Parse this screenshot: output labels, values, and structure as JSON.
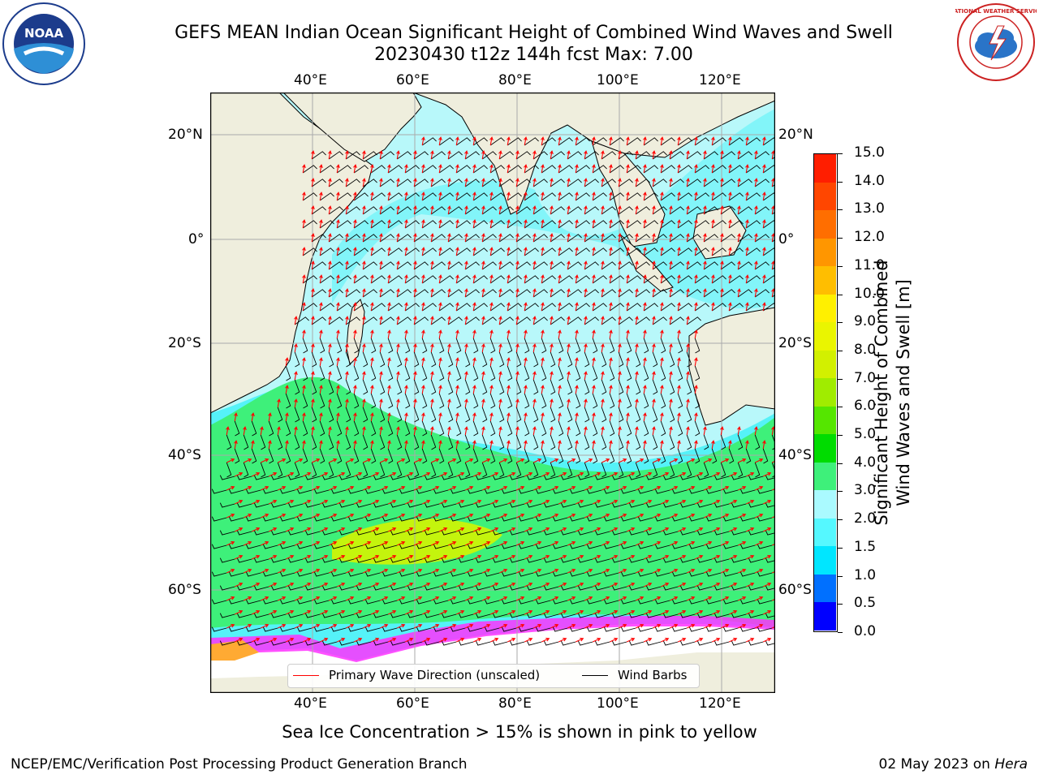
{
  "header": {
    "title_line1": "GEFS MEAN Indian Ocean Significant Height of Combined Wind Waves and Swell",
    "title_line2": "20230430 t12z 144h fcst   Max: 7.00"
  },
  "logos": {
    "noaa_text": "NOAA",
    "nws_text": "NATIONAL WEATHER SERVICE"
  },
  "map": {
    "lon_ticks": [
      "40°E",
      "60°E",
      "80°E",
      "100°E",
      "120°E"
    ],
    "lat_ticks": [
      "20°N",
      "0°",
      "20°S",
      "40°S",
      "60°S"
    ],
    "legend": {
      "wave_dir": "Primary Wave Direction (unscaled)",
      "wind_barbs": "Wind Barbs"
    },
    "colors": {
      "land": "#efeedd",
      "ocean_calm": "#b8f8fa",
      "ocean_mid": "#55f2f8",
      "ocean_high": "#3ef07a",
      "ocean_peak": "#c4f40d",
      "wave_arrow": "#ff0000",
      "barb": "#000000",
      "ice_pink": "#ff33ff",
      "ice_yellow": "#ffaa33"
    }
  },
  "colorbar": {
    "label_line1": "Significant Height of Combined",
    "label_line2": "Wind Waves and Swell [m]",
    "ticks": [
      "0.0",
      "0.5",
      "1.0",
      "1.5",
      "2.0",
      "3.0",
      "4.0",
      "5.0",
      "6.0",
      "7.0",
      "8.0",
      "9.0",
      "10.0",
      "11.0",
      "12.0",
      "13.0",
      "14.0",
      "15.0"
    ],
    "colors": [
      "#0000ff",
      "#0070ff",
      "#00e6ff",
      "#55f8ff",
      "#aafaff",
      "#3ef07a",
      "#00dc00",
      "#55e600",
      "#a0ec00",
      "#d2f000",
      "#eaf500",
      "#fff000",
      "#ffbe00",
      "#ff9600",
      "#ff6e00",
      "#ff4600",
      "#ff1e00"
    ]
  },
  "caption": "Sea Ice Concentration > 15% is shown in pink to yellow",
  "footer": {
    "left": "NCEP/EMC/Verification Post Processing Product Generation Branch",
    "right_date": "02 May 2023 on ",
    "right_host": "Hera"
  }
}
